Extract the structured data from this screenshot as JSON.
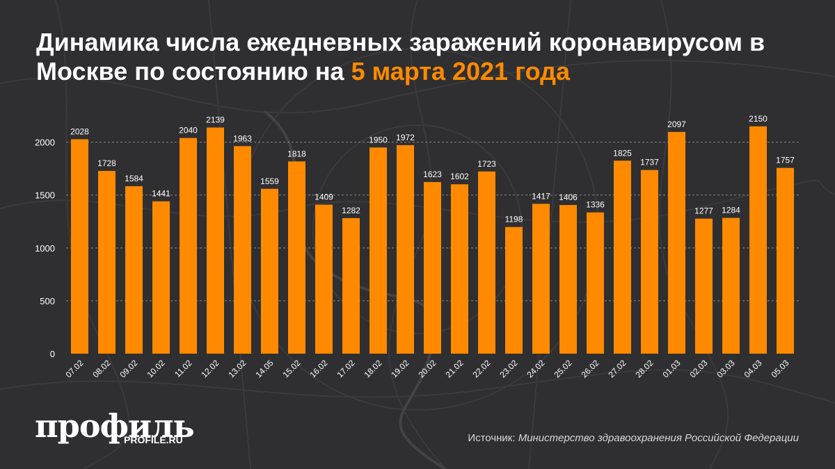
{
  "title": {
    "main": "Динамика числа ежедневных заражений коронавирусом в Москве по состоянию на",
    "highlight": "5 марта 2021 года"
  },
  "brand": {
    "logo": "профиль",
    "site": "PROFILE.RU"
  },
  "source": {
    "label": "Источник:",
    "value": "Министерство здравоохранения Российской Федерации"
  },
  "colors": {
    "background": "#2f2f31",
    "bar": "#ff8a00",
    "accent": "#ff8a00",
    "text": "#ffffff",
    "grid": "#8a8a8a"
  },
  "chart_data": {
    "type": "bar",
    "categories": [
      "07.02",
      "08.02",
      "09.02",
      "10.02",
      "11.02",
      "12.02",
      "13.02",
      "14.05",
      "15.02",
      "16.02",
      "17.02",
      "18.02",
      "19.02",
      "20.02",
      "21.02",
      "22.02",
      "23.02",
      "24.02",
      "25.02",
      "26.02",
      "27.02",
      "28.02",
      "01.03",
      "02.03",
      "03.03",
      "04.03",
      "05.03"
    ],
    "values": [
      2028,
      1728,
      1584,
      1441,
      2040,
      2139,
      1963,
      1559,
      1818,
      1409,
      1282,
      1950,
      1972,
      1623,
      1602,
      1723,
      1198,
      1417,
      1406,
      1336,
      1825,
      1737,
      2097,
      1277,
      1284,
      2150,
      1757
    ],
    "ylim": [
      0,
      2300
    ],
    "yticks": [
      0,
      500,
      1000,
      1500,
      2000
    ],
    "grid": "dashed horizontal",
    "data_labels": true
  }
}
